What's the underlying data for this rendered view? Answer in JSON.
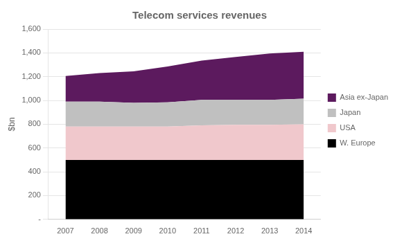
{
  "chart_data": {
    "type": "area",
    "title": "Telecom services revenues",
    "ylabel": "$bn",
    "categories": [
      "2007",
      "2008",
      "2009",
      "2010",
      "2011",
      "2012",
      "2013",
      "2014"
    ],
    "series": [
      {
        "name": "W. Europe",
        "color": "#000000",
        "values": [
          500,
          500,
          500,
          500,
          500,
          500,
          500,
          500
        ]
      },
      {
        "name": "USA",
        "color": "#f0c8cc",
        "values": [
          280,
          280,
          280,
          280,
          290,
          295,
          295,
          300
        ]
      },
      {
        "name": "Japan",
        "color": "#c0c0c0",
        "values": [
          210,
          210,
          200,
          205,
          215,
          210,
          210,
          215
        ]
      },
      {
        "name": "Asia ex-Japan",
        "color": "#5c1a5e",
        "values": [
          215,
          240,
          265,
          300,
          330,
          360,
          390,
          395
        ]
      }
    ],
    "stacked": true,
    "ylim": [
      0,
      1600
    ],
    "yticks": [
      {
        "value": 0,
        "label": "-"
      },
      200,
      400,
      600,
      800,
      {
        "value": 1000,
        "label": "1,000"
      },
      {
        "value": 1200,
        "label": "1,200"
      },
      {
        "value": 1400,
        "label": "1,400"
      },
      {
        "value": 1600,
        "label": "1,600"
      }
    ],
    "grid": true,
    "legend": "right"
  }
}
